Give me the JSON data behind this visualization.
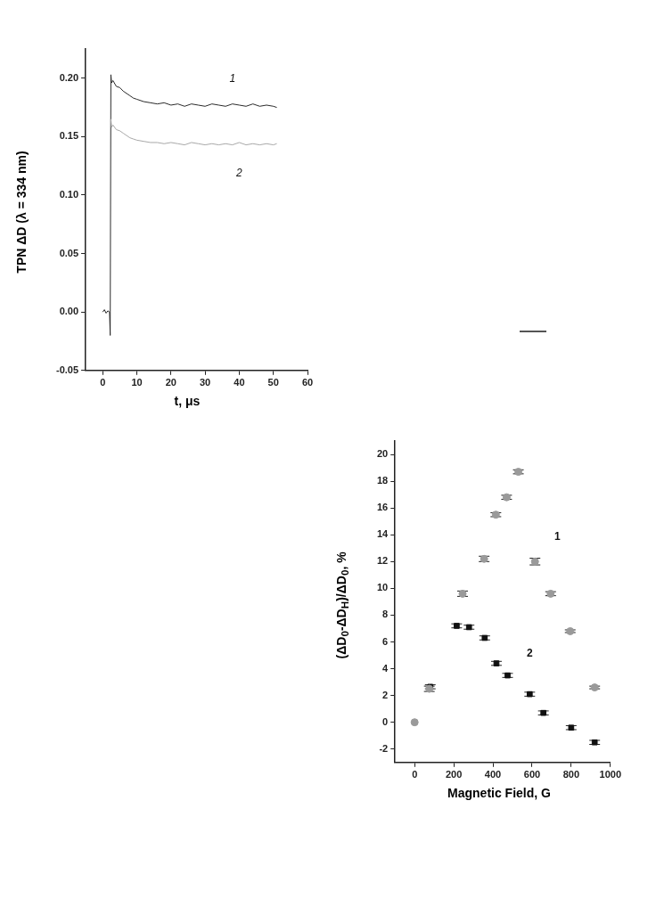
{
  "chart_data": [
    {
      "type": "line",
      "xlabel": "t, μs",
      "ylabel": "TPN ΔD (λ = 334 nm)",
      "xlim": [
        -5,
        60
      ],
      "xticks": [
        0,
        10,
        20,
        30,
        40,
        50,
        60
      ],
      "ylim": [
        -0.05,
        0.225
      ],
      "yticks": [
        {
          "value": -0.05,
          "label": "-0.05"
        },
        {
          "value": 0,
          "label": "0.00"
        },
        {
          "value": 0.05,
          "label": "0.05"
        },
        {
          "value": 0.1,
          "label": "0.10"
        },
        {
          "value": 0.15,
          "label": "0.15"
        },
        {
          "value": 0.2,
          "label": "0.20"
        }
      ],
      "grid": false,
      "legend": false,
      "marker": "none",
      "line_style": "solid",
      "series": [
        {
          "name": "2",
          "color": "#a8a8a8",
          "x": [
            2.4,
            2.6,
            3,
            4,
            5,
            6,
            7,
            8,
            9,
            10,
            12,
            14,
            16,
            18,
            20,
            22,
            24,
            26,
            28,
            30,
            32,
            34,
            36,
            38,
            40,
            42,
            44,
            46,
            48,
            50,
            51
          ],
          "values": [
            0.165,
            0.158,
            0.16,
            0.156,
            0.155,
            0.153,
            0.151,
            0.149,
            0.148,
            0.147,
            0.146,
            0.145,
            0.145,
            0.144,
            0.145,
            0.144,
            0.143,
            0.145,
            0.144,
            0.143,
            0.144,
            0.143,
            0.144,
            0.143,
            0.145,
            0.143,
            0.144,
            0.143,
            0.144,
            0.143,
            0.144
          ]
        },
        {
          "name": "1",
          "color": "#2a2a2a",
          "x": [
            0,
            0.5,
            1,
            1.5,
            2,
            2.2,
            2.4,
            2.6,
            3,
            4,
            5,
            6,
            7,
            8,
            9,
            10,
            12,
            14,
            16,
            18,
            20,
            22,
            24,
            26,
            28,
            30,
            32,
            34,
            36,
            38,
            40,
            42,
            44,
            46,
            48,
            50,
            51
          ],
          "values": [
            0,
            0.002,
            -0.001,
            0.001,
            0,
            -0.02,
            0.203,
            0.196,
            0.198,
            0.193,
            0.192,
            0.189,
            0.187,
            0.185,
            0.183,
            0.182,
            0.18,
            0.179,
            0.178,
            0.179,
            0.177,
            0.178,
            0.176,
            0.178,
            0.177,
            0.176,
            0.178,
            0.177,
            0.176,
            0.178,
            0.177,
            0.176,
            0.178,
            0.176,
            0.177,
            0.176,
            0.175
          ]
        }
      ]
    },
    {
      "type": "scatter",
      "xlabel": "Magnetic Field, G",
      "ylabel": "(ΔD$_{0}$-ΔD$_{H}$)/ΔD$_{0}$, %",
      "xlim": [
        -100,
        1000
      ],
      "xticks": [
        0,
        200,
        400,
        600,
        800,
        1000
      ],
      "ylim": [
        -3,
        21
      ],
      "yticks": [
        -2,
        0,
        2,
        4,
        6,
        8,
        10,
        12,
        14,
        16,
        18,
        20
      ],
      "grid": false,
      "legend": false,
      "series": [
        {
          "name": "1",
          "color": "#9a9a9a",
          "marker": "circle",
          "x": [
            0,
            75,
            245,
            355,
            415,
            470,
            530,
            615,
            695,
            795,
            920
          ],
          "values": [
            0,
            2.5,
            9.6,
            12.2,
            15.5,
            16.8,
            18.7,
            12.0,
            9.6,
            6.8,
            2.6
          ],
          "errors": [
            null,
            0.2,
            0.2,
            0.2,
            0.15,
            0.15,
            0.15,
            0.25,
            0.15,
            0.1,
            0.1
          ]
        },
        {
          "name": "2",
          "color": "#111111",
          "marker": "square",
          "x": [
            80,
            215,
            278,
            358,
            418,
            475,
            588,
            658,
            800,
            920
          ],
          "values": [
            2.65,
            7.2,
            7.1,
            6.3,
            4.4,
            3.5,
            2.1,
            0.7,
            -0.4,
            -1.5
          ],
          "errors": [
            0.15,
            0.15,
            0.15,
            0.15,
            0.15,
            0.15,
            0.15,
            0.15,
            0.15,
            0.15
          ]
        }
      ]
    }
  ]
}
